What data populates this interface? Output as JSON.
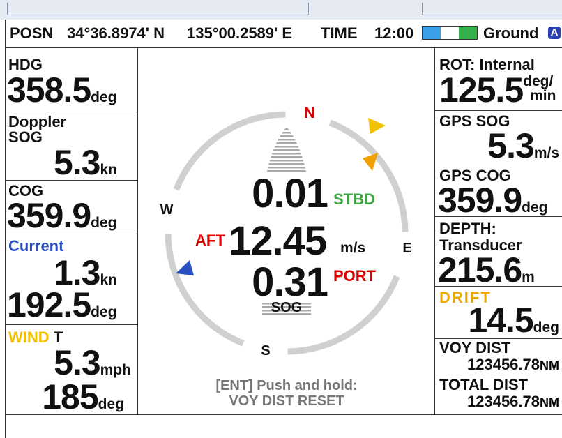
{
  "header": {
    "position_label": "POSN",
    "latitude": "34°36.8974' N",
    "longitude": "135°00.2589' E",
    "time_label": "TIME",
    "time": "12:00",
    "mode": "Ground",
    "mode_badge": "A"
  },
  "left_panels": [
    {
      "label": "HDG",
      "value": "358.5",
      "unit": "deg"
    },
    {
      "label": "Doppler",
      "sublabel": "SOG",
      "value": "5.3",
      "unit": "kn"
    },
    {
      "label": "COG",
      "value": "359.9",
      "unit": "deg"
    },
    {
      "label": "Current",
      "speed": "1.3",
      "speed_unit": "kn",
      "direction": "192.5",
      "direction_unit": "deg"
    },
    {
      "label": "WIND",
      "label_suffix": "T",
      "speed": "5.3",
      "speed_unit": "mph",
      "direction": "185",
      "direction_unit": "deg"
    }
  ],
  "right_panels": [
    {
      "label": "ROT: Internal",
      "value": "125.5",
      "unit_top": "deg/",
      "unit_bottom": "min"
    },
    {
      "label": "GPS SOG",
      "value": "5.3",
      "unit": "m/s"
    },
    {
      "label": "GPS COG",
      "value": "359.9",
      "unit": "deg"
    },
    {
      "label": "DEPTH:",
      "sublabel": "Transducer",
      "value": "215.6",
      "unit": "m"
    },
    {
      "label": "DRIFT",
      "value": "14.5",
      "unit": "deg"
    },
    {
      "label": "VOY DIST",
      "value": "123456.78",
      "unit": "NM"
    },
    {
      "label": "TOTAL DIST",
      "value": "123456.78",
      "unit": "NM"
    }
  ],
  "center": {
    "north": "N",
    "east": "E",
    "south": "S",
    "west": "W",
    "bow_speed": "0.01",
    "bow_direction": "STBD",
    "longitudinal_direction": "AFT",
    "longitudinal_speed": "12.45",
    "speed_unit": "m/s",
    "stern_speed": "0.31",
    "stern_direction": "PORT",
    "speed_mode": "SOG",
    "hint_line1": "[ENT] Push and hold:",
    "hint_line2": "VOY DIST RESET"
  }
}
